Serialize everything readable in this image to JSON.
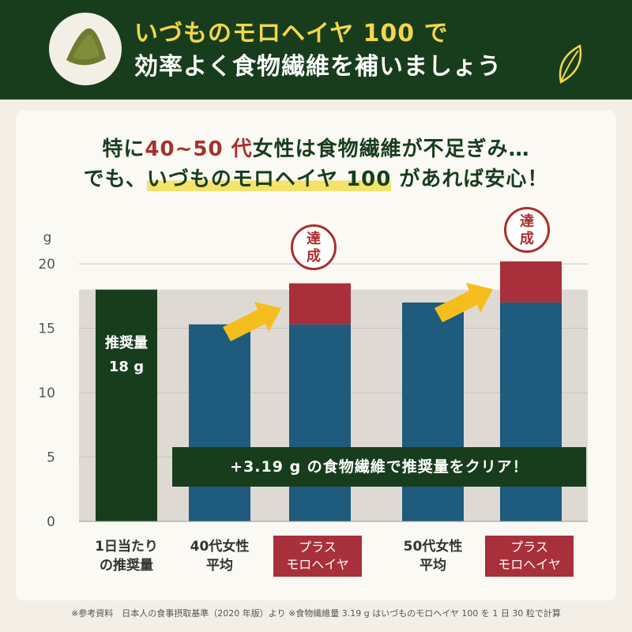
{
  "header": {
    "title_line1": "いづものモロヘイヤ 100 で",
    "title_line2": "効率よく食物繊維を補いましょう"
  },
  "lead": {
    "line1_a": "特に",
    "line1_b": "40~50 代",
    "line1_c": "女性は食物繊維が不足ぎみ…",
    "line2_a": "でも、",
    "line2_b": "いづものモロヘイヤ 100",
    "line2_c": " があれば安心！"
  },
  "chart_data": {
    "type": "bar",
    "ylabel": "g",
    "ylim": [
      0,
      20
    ],
    "yticks": [
      "0",
      "5",
      "10",
      "15",
      "20"
    ],
    "reference_band": 18,
    "categories": [
      "1日当たりの推奨量",
      "40代女性平均",
      "プラスモロヘイヤ",
      "50代女性平均",
      "プラスモロヘイヤ"
    ],
    "series": [
      {
        "values": [
          18,
          15.3,
          15.3,
          17.0,
          17.0
        ]
      },
      {
        "values": [
          0,
          0,
          3.19,
          0,
          3.19
        ]
      }
    ],
    "colors": {
      "recommended": "#183d1d",
      "average": "#1e5b7d",
      "added": "#a8303a",
      "band": "#dedad3",
      "arrow": "#f5bd1e"
    }
  },
  "labels": {
    "recommended_title": "推奨量",
    "recommended_value": "18 g",
    "x1_l1": "1日当たり",
    "x1_l2": "の推奨量",
    "x2_l1": "40代女性",
    "x2_l2": "平均",
    "x3_l1": "プラス",
    "x3_l2": "モロヘイヤ",
    "x4_l1": "50代女性",
    "x4_l2": "平均",
    "x5_l1": "プラス",
    "x5_l2": "モロヘイヤ",
    "banner": "+3.19 g の食物繊維で推奨量をクリア！",
    "stamp_l1": "達",
    "stamp_l2": "成"
  },
  "footnote": "※参考資料　日本人の食事摂取基準（2020 年版）より ※食物繊維量 3.19 g はいづものモロヘイヤ 100 を 1 日 30 粒で計算"
}
